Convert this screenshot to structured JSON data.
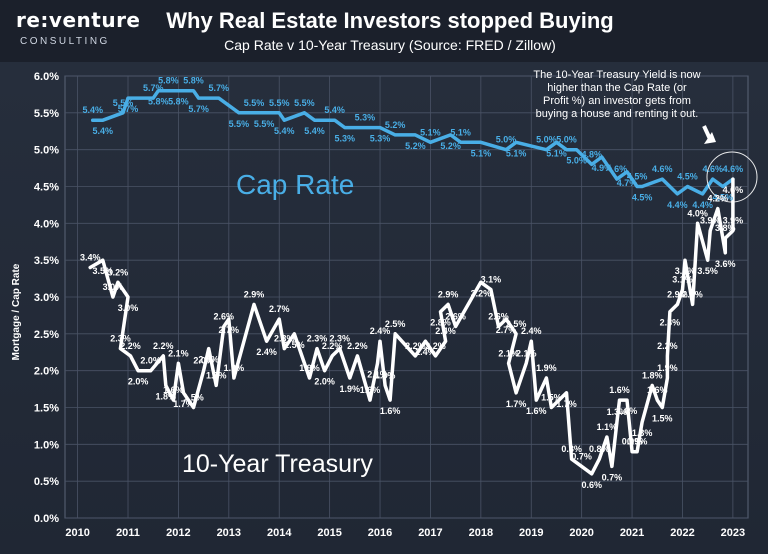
{
  "header": {
    "logo": "re:venture",
    "logo_sub": "CONSULTING",
    "title": "Why Real Estate Investors stopped Buying",
    "subtitle": "Cap Rate v 10-Year Treasury (Source: FRED / Zillow)"
  },
  "chart_data": {
    "type": "line",
    "title": "Why Real Estate Investors stopped Buying",
    "subtitle": "Cap Rate v 10-Year Treasury (Source: FRED / Zillow)",
    "ylabel": "Mortgage / Cap Rate",
    "xlabel": "",
    "ylim": [
      0,
      6
    ],
    "xlim": [
      2009.75,
      2023.3
    ],
    "grid": true,
    "x_ticks": [
      "2010",
      "2011",
      "2012",
      "2013",
      "2014",
      "2015",
      "2016",
      "2017",
      "2018",
      "2019",
      "2020",
      "2021",
      "2022",
      "2023"
    ],
    "y_ticks": [
      "0.0%",
      "0.5%",
      "1.0%",
      "1.5%",
      "2.0%",
      "2.5%",
      "3.0%",
      "3.5%",
      "4.0%",
      "4.5%",
      "5.0%",
      "5.5%",
      "6.0%"
    ],
    "annotation": "The 10-Year Treasury Yield is now higher than the Cap Rate (or Profit %) an investor gets from buying a house and renting it out.",
    "series": [
      {
        "name": "Cap Rate",
        "color": "#49aee6",
        "points": [
          {
            "x": 2010.3,
            "y": 5.4,
            "label": "5.4%"
          },
          {
            "x": 2010.5,
            "y": 5.4,
            "label": "5.4%"
          },
          {
            "x": 2010.9,
            "y": 5.5,
            "label": "5.5%"
          },
          {
            "x": 2011.0,
            "y": 5.7,
            "label": "5.7%"
          },
          {
            "x": 2011.5,
            "y": 5.7,
            "label": "5.7%"
          },
          {
            "x": 2011.6,
            "y": 5.8,
            "label": "5.8%"
          },
          {
            "x": 2011.8,
            "y": 5.8,
            "label": "5.8%"
          },
          {
            "x": 2012.0,
            "y": 5.8,
            "label": "5.8%"
          },
          {
            "x": 2012.3,
            "y": 5.8,
            "label": "5.8%"
          },
          {
            "x": 2012.4,
            "y": 5.7,
            "label": "5.7%"
          },
          {
            "x": 2012.8,
            "y": 5.7,
            "label": "5.7%"
          },
          {
            "x": 2013.2,
            "y": 5.5,
            "label": "5.5%"
          },
          {
            "x": 2013.5,
            "y": 5.5,
            "label": "5.5%"
          },
          {
            "x": 2013.7,
            "y": 5.5,
            "label": "5.5%"
          },
          {
            "x": 2014.0,
            "y": 5.5,
            "label": "5.5%"
          },
          {
            "x": 2014.1,
            "y": 5.4,
            "label": "5.4%"
          },
          {
            "x": 2014.5,
            "y": 5.5,
            "label": "5.5%"
          },
          {
            "x": 2014.7,
            "y": 5.4,
            "label": "5.4%"
          },
          {
            "x": 2015.1,
            "y": 5.4,
            "label": "5.4%"
          },
          {
            "x": 2015.3,
            "y": 5.3,
            "label": "5.3%"
          },
          {
            "x": 2015.7,
            "y": 5.3,
            "label": "5.3%"
          },
          {
            "x": 2016.0,
            "y": 5.3,
            "label": "5.3%"
          },
          {
            "x": 2016.3,
            "y": 5.2,
            "label": "5.2%"
          },
          {
            "x": 2016.7,
            "y": 5.2,
            "label": "5.2%"
          },
          {
            "x": 2017.0,
            "y": 5.1,
            "label": "5.1%"
          },
          {
            "x": 2017.4,
            "y": 5.2,
            "label": "5.2%"
          },
          {
            "x": 2017.6,
            "y": 5.1,
            "label": "5.1%"
          },
          {
            "x": 2018.0,
            "y": 5.1,
            "label": "5.1%"
          },
          {
            "x": 2018.5,
            "y": 5.0,
            "label": "5.0%"
          },
          {
            "x": 2018.7,
            "y": 5.1,
            "label": "5.1%"
          },
          {
            "x": 2019.3,
            "y": 5.0,
            "label": "5.0%"
          },
          {
            "x": 2019.5,
            "y": 5.1,
            "label": "5.1%"
          },
          {
            "x": 2019.7,
            "y": 5.0,
            "label": "5.0%"
          },
          {
            "x": 2019.9,
            "y": 5.0,
            "label": "5.0%"
          },
          {
            "x": 2020.2,
            "y": 4.8,
            "label": "4.8%"
          },
          {
            "x": 2020.4,
            "y": 4.9,
            "label": "4.9%"
          },
          {
            "x": 2020.7,
            "y": 4.6,
            "label": "4.6%"
          },
          {
            "x": 2020.9,
            "y": 4.7,
            "label": "4.7%"
          },
          {
            "x": 2021.1,
            "y": 4.5,
            "label": "4.5%"
          },
          {
            "x": 2021.2,
            "y": 4.5,
            "label": "4.5%"
          },
          {
            "x": 2021.6,
            "y": 4.6,
            "label": "4.6%"
          },
          {
            "x": 2021.9,
            "y": 4.4,
            "label": "4.4%"
          },
          {
            "x": 2022.1,
            "y": 4.5,
            "label": "4.5%"
          },
          {
            "x": 2022.4,
            "y": 4.4,
            "label": "4.4%"
          },
          {
            "x": 2022.6,
            "y": 4.6,
            "label": "4.6%"
          },
          {
            "x": 2022.8,
            "y": 4.5,
            "label": "4.5%"
          },
          {
            "x": 2023.0,
            "y": 4.6,
            "label": "4.6%"
          }
        ]
      },
      {
        "name": "10-Year Treasury",
        "color": "#ffffff",
        "points": [
          {
            "x": 2010.25,
            "y": 3.4,
            "label": "3.4%"
          },
          {
            "x": 2010.5,
            "y": 3.5,
            "label": "3.5%"
          },
          {
            "x": 2010.7,
            "y": 3.0,
            "label": "3.0%"
          },
          {
            "x": 2010.8,
            "y": 3.2,
            "label": "3.2%"
          },
          {
            "x": 2011.0,
            "y": 3.0,
            "label": "3.0%"
          },
          {
            "x": 2010.85,
            "y": 2.3,
            "label": "2.3%"
          },
          {
            "x": 2011.05,
            "y": 2.2,
            "label": "2.2%"
          },
          {
            "x": 2011.2,
            "y": 2.0,
            "label": "2.0%"
          },
          {
            "x": 2011.45,
            "y": 2.0,
            "label": "2.0%"
          },
          {
            "x": 2011.7,
            "y": 2.2,
            "label": "2.2%"
          },
          {
            "x": 2011.75,
            "y": 1.8,
            "label": "1.8%"
          },
          {
            "x": 2011.9,
            "y": 1.6,
            "label": "1.6%"
          },
          {
            "x": 2012.0,
            "y": 2.1,
            "label": "2.1%"
          },
          {
            "x": 2012.1,
            "y": 1.7,
            "label": "1.7%"
          },
          {
            "x": 2012.3,
            "y": 1.5,
            "label": "1.5%"
          },
          {
            "x": 2012.5,
            "y": 2.0,
            "label": "2.0%"
          },
          {
            "x": 2012.6,
            "y": 2.3,
            "label": "2.3%"
          },
          {
            "x": 2012.75,
            "y": 1.8,
            "label": "1.8%"
          },
          {
            "x": 2012.9,
            "y": 2.6,
            "label": "2.6%"
          },
          {
            "x": 2013.0,
            "y": 2.7,
            "label": "2.7%"
          },
          {
            "x": 2013.1,
            "y": 1.9,
            "label": "1.9%"
          },
          {
            "x": 2013.5,
            "y": 2.9,
            "label": "2.9%"
          },
          {
            "x": 2013.75,
            "y": 2.4,
            "label": "2.4%"
          },
          {
            "x": 2014.0,
            "y": 2.7,
            "label": "2.7%"
          },
          {
            "x": 2014.1,
            "y": 2.3,
            "label": "2.3%"
          },
          {
            "x": 2014.3,
            "y": 2.5,
            "label": "2.5%"
          },
          {
            "x": 2014.6,
            "y": 1.9,
            "label": "1.9%"
          },
          {
            "x": 2014.75,
            "y": 2.3,
            "label": "2.3%"
          },
          {
            "x": 2014.9,
            "y": 2.0,
            "label": "2.0%"
          },
          {
            "x": 2015.05,
            "y": 2.2,
            "label": "2.2%"
          },
          {
            "x": 2015.2,
            "y": 2.3,
            "label": "2.3%"
          },
          {
            "x": 2015.4,
            "y": 1.9,
            "label": "1.9%"
          },
          {
            "x": 2015.55,
            "y": 2.2,
            "label": "2.2%"
          },
          {
            "x": 2015.8,
            "y": 1.6,
            "label": "1.6%"
          },
          {
            "x": 2015.95,
            "y": 2.1,
            "label": "2.1%"
          },
          {
            "x": 2016.0,
            "y": 2.4,
            "label": "2.4%"
          },
          {
            "x": 2016.1,
            "y": 1.8,
            "label": "1.8%"
          },
          {
            "x": 2016.2,
            "y": 1.6,
            "label": "1.6%"
          },
          {
            "x": 2016.3,
            "y": 2.5,
            "label": "2.5%"
          },
          {
            "x": 2016.7,
            "y": 2.2,
            "label": "2.2%"
          },
          {
            "x": 2016.9,
            "y": 2.4,
            "label": "2.4%"
          },
          {
            "x": 2017.1,
            "y": 2.2,
            "label": "2.2%"
          },
          {
            "x": 2017.3,
            "y": 2.4,
            "label": "2.4%"
          },
          {
            "x": 2017.2,
            "y": 2.8,
            "label": "2.8%"
          },
          {
            "x": 2017.35,
            "y": 2.9,
            "label": "2.9%"
          },
          {
            "x": 2017.5,
            "y": 2.6,
            "label": "2.6%"
          },
          {
            "x": 2018.0,
            "y": 3.2,
            "label": "3.2%"
          },
          {
            "x": 2018.2,
            "y": 3.1,
            "label": "3.1%"
          },
          {
            "x": 2018.35,
            "y": 2.6,
            "label": "2.6%"
          },
          {
            "x": 2018.5,
            "y": 2.7,
            "label": "2.7%"
          },
          {
            "x": 2018.7,
            "y": 2.5,
            "label": "2.5%"
          },
          {
            "x": 2018.55,
            "y": 2.1,
            "label": "2.1%"
          },
          {
            "x": 2018.7,
            "y": 1.7,
            "label": "1.7%"
          },
          {
            "x": 2018.9,
            "y": 2.1,
            "label": "2.1%"
          },
          {
            "x": 2019.0,
            "y": 2.4,
            "label": "2.4%"
          },
          {
            "x": 2019.1,
            "y": 1.6,
            "label": "1.6%"
          },
          {
            "x": 2019.3,
            "y": 1.9,
            "label": "1.9%"
          },
          {
            "x": 2019.4,
            "y": 1.5,
            "label": "1.5%"
          },
          {
            "x": 2019.7,
            "y": 1.7,
            "label": "1.7%"
          },
          {
            "x": 2019.8,
            "y": 0.8,
            "label": "0.8%"
          },
          {
            "x": 2020.0,
            "y": 0.7,
            "label": "0.7%"
          },
          {
            "x": 2020.2,
            "y": 0.6,
            "label": "0.6%"
          },
          {
            "x": 2020.35,
            "y": 0.8,
            "label": "0.8%"
          },
          {
            "x": 2020.5,
            "y": 1.1,
            "label": "1.1%"
          },
          {
            "x": 2020.6,
            "y": 0.7,
            "label": "0.7%"
          },
          {
            "x": 2020.7,
            "y": 1.3,
            "label": "1.3%"
          },
          {
            "x": 2020.75,
            "y": 1.6,
            "label": "1.6%"
          },
          {
            "x": 2020.9,
            "y": 1.6,
            "label": "1.6%"
          },
          {
            "x": 2021.0,
            "y": 0.9,
            "label": "0.9%"
          },
          {
            "x": 2021.1,
            "y": 0.9,
            "label": "0.9%"
          },
          {
            "x": 2021.2,
            "y": 1.3,
            "label": "1.3%"
          },
          {
            "x": 2021.4,
            "y": 1.8,
            "label": "1.8%"
          },
          {
            "x": 2021.5,
            "y": 1.6,
            "label": "1.6%"
          },
          {
            "x": 2021.6,
            "y": 1.5,
            "label": "1.5%"
          },
          {
            "x": 2021.7,
            "y": 1.9,
            "label": "1.9%"
          },
          {
            "x": 2021.7,
            "y": 2.2,
            "label": "2.2%"
          },
          {
            "x": 2021.75,
            "y": 2.8,
            "label": "2.8%"
          },
          {
            "x": 2021.9,
            "y": 2.9,
            "label": "2.9%"
          },
          {
            "x": 2022.0,
            "y": 3.1,
            "label": "3.1%"
          },
          {
            "x": 2022.05,
            "y": 3.5,
            "label": "3.5%"
          },
          {
            "x": 2022.2,
            "y": 2.9,
            "label": "2.9%"
          },
          {
            "x": 2022.3,
            "y": 4.0,
            "label": "4.0%"
          },
          {
            "x": 2022.5,
            "y": 3.5,
            "label": "3.5%"
          },
          {
            "x": 2022.55,
            "y": 3.9,
            "label": "3.9%"
          },
          {
            "x": 2022.7,
            "y": 4.2,
            "label": "4.2%"
          },
          {
            "x": 2022.85,
            "y": 3.6,
            "label": "3.6%"
          },
          {
            "x": 2022.85,
            "y": 3.8,
            "label": "3.8%"
          },
          {
            "x": 2023.0,
            "y": 3.9,
            "label": "3.9%"
          },
          {
            "x": 2023.0,
            "y": 4.6,
            "label": "4.6%"
          }
        ]
      }
    ]
  }
}
